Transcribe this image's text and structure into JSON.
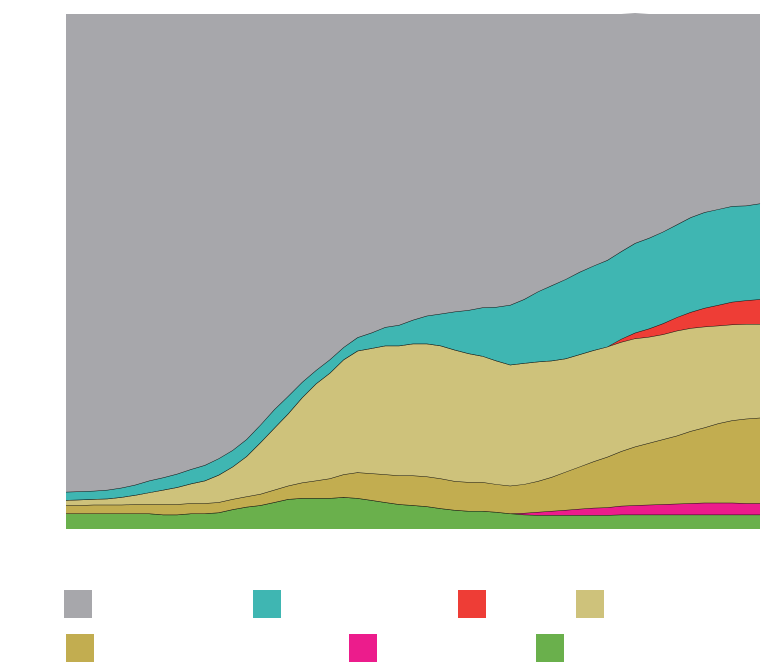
{
  "chart_data": {
    "type": "area",
    "stacked": true,
    "title": "",
    "xlabel": "",
    "ylabel": "",
    "x": [
      0,
      1,
      2,
      3,
      4,
      5,
      6,
      7,
      8,
      9,
      10,
      11,
      12,
      13,
      14,
      15,
      16,
      17,
      18,
      19,
      20,
      21,
      22,
      23,
      24,
      25,
      26,
      27,
      28,
      29,
      30,
      31,
      32,
      33,
      34,
      35,
      36,
      37,
      38,
      39,
      40,
      41,
      42,
      43,
      44,
      45,
      46,
      47,
      48,
      49,
      50
    ],
    "ylim": [
      0,
      100
    ],
    "series": [
      {
        "name": "",
        "color": "#6ab04c",
        "values": [
          3.0,
          3.0,
          3.0,
          3.0,
          3.0,
          3.0,
          3.0,
          2.8,
          2.8,
          3.0,
          3.0,
          3.2,
          3.8,
          4.3,
          4.6,
          5.2,
          5.8,
          6.0,
          6.0,
          6.0,
          6.2,
          6.0,
          5.6,
          5.2,
          4.8,
          4.6,
          4.4,
          4.0,
          3.7,
          3.5,
          3.5,
          3.3,
          3.0,
          2.8,
          2.7,
          2.7,
          2.7,
          2.7,
          2.7,
          2.7,
          2.8,
          2.8,
          2.8,
          2.8,
          2.8,
          2.8,
          2.8,
          2.8,
          2.8,
          2.8,
          2.8
        ]
      },
      {
        "name": "",
        "color": "#ec1c8c",
        "values": [
          0,
          0,
          0,
          0,
          0,
          0,
          0,
          0,
          0,
          0,
          0,
          0,
          0,
          0,
          0,
          0,
          0,
          0,
          0,
          0,
          0,
          0,
          0,
          0,
          0,
          0,
          0,
          0,
          0,
          0,
          0,
          0,
          0,
          0.3,
          0.6,
          0.8,
          1.0,
          1.2,
          1.4,
          1.5,
          1.7,
          1.8,
          1.9,
          2.0,
          2.1,
          2.2,
          2.3,
          2.3,
          2.3,
          2.2,
          2.2
        ]
      },
      {
        "name": "",
        "color": "#c2ad50",
        "values": [
          1.6,
          1.6,
          1.7,
          1.7,
          1.7,
          1.8,
          1.8,
          2.0,
          2.0,
          2.0,
          2.0,
          2.0,
          2.0,
          2.0,
          2.2,
          2.4,
          2.6,
          3.0,
          3.4,
          3.8,
          4.4,
          5.0,
          5.2,
          5.4,
          5.6,
          5.8,
          5.8,
          5.8,
          5.6,
          5.6,
          5.6,
          5.4,
          5.4,
          5.6,
          6.0,
          6.6,
          7.4,
          8.2,
          9.0,
          9.8,
          10.6,
          11.4,
          12.0,
          12.6,
          13.2,
          14.0,
          14.6,
          15.4,
          16.0,
          16.4,
          16.6
        ]
      },
      {
        "name": "",
        "color": "#cec27b",
        "values": [
          1.0,
          1.1,
          1.1,
          1.2,
          1.5,
          1.8,
          2.3,
          2.8,
          3.3,
          3.8,
          4.4,
          5.3,
          6.3,
          7.8,
          10.0,
          12.0,
          14.0,
          16.5,
          18.8,
          20.5,
          22.3,
          23.6,
          24.3,
          25.0,
          25.2,
          25.6,
          25.8,
          25.8,
          25.5,
          25.0,
          24.5,
          24.0,
          23.5,
          23.5,
          23.2,
          22.6,
          22.0,
          21.8,
          21.6,
          21.4,
          21.2,
          21.0,
          20.6,
          20.4,
          20.4,
          20.0,
          19.6,
          19.0,
          18.6,
          18.4,
          18.2
        ]
      },
      {
        "name": "",
        "color": "#ee3d36",
        "values": [
          0,
          0,
          0,
          0,
          0,
          0,
          0,
          0,
          0,
          0,
          0,
          0,
          0,
          0,
          0,
          0,
          0,
          0,
          0,
          0,
          0,
          0,
          0,
          0,
          0,
          0,
          0,
          0,
          0,
          0,
          0,
          0,
          0,
          0,
          0,
          0,
          0,
          0,
          0,
          0,
          0.6,
          1.1,
          1.6,
          2.1,
          2.6,
          3.1,
          3.6,
          4.0,
          4.4,
          4.6,
          4.8
        ]
      },
      {
        "name": "",
        "color": "#3fb6b2",
        "values": [
          1.6,
          1.6,
          1.6,
          1.7,
          1.8,
          2.0,
          2.3,
          2.4,
          2.6,
          2.8,
          3.0,
          3.2,
          3.2,
          3.3,
          3.4,
          3.6,
          3.4,
          3.0,
          2.6,
          2.6,
          2.4,
          2.6,
          3.0,
          3.6,
          4.0,
          4.6,
          5.4,
          6.2,
          7.4,
          8.4,
          9.4,
          10.4,
          11.6,
          12.4,
          13.6,
          14.6,
          15.4,
          16.0,
          16.4,
          16.8,
          17.0,
          17.4,
          17.6,
          17.8,
          18.0,
          18.4,
          18.6,
          18.6,
          18.6,
          18.4,
          18.6
        ]
      },
      {
        "name": "",
        "color": "#a7a7ab",
        "values": [
          92.8,
          92.7,
          92.6,
          92.4,
          92.0,
          91.4,
          90.6,
          90.0,
          89.3,
          88.4,
          87.6,
          86.3,
          84.7,
          82.6,
          79.8,
          76.8,
          74.2,
          71.5,
          69.2,
          67.1,
          64.7,
          62.8,
          61.9,
          60.8,
          60.4,
          59.4,
          58.6,
          58.2,
          57.8,
          57.5,
          57.0,
          56.9,
          56.5,
          55.4,
          53.9,
          52.7,
          51.5,
          50.1,
          48.9,
          47.8,
          46.1,
          44.7,
          43.5,
          42.3,
          40.9,
          39.5,
          38.5,
          37.9,
          37.3,
          37.2,
          36.8
        ]
      }
    ],
    "legend": {
      "position": "bottom"
    }
  }
}
